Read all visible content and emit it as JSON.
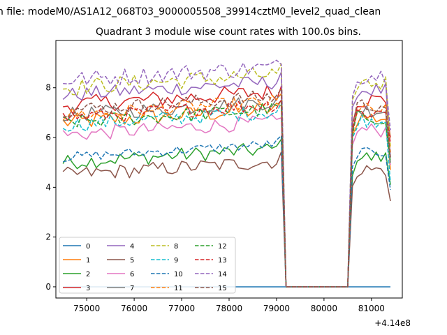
{
  "figure": {
    "suptitle": "n file: modeM0/AS1A12_068T03_9000005508_39914cztM0_level2_quad_clean"
  },
  "chart_data": {
    "type": "line",
    "title": "Quadrant 3 module wise count rates with 100.0s bins.",
    "xlabel": "",
    "ylabel": "",
    "x_offset_label": "+4.14e8",
    "xlim": [
      74350,
      81650
    ],
    "ylim": [
      -0.45,
      9.9
    ],
    "x_ticks": [
      75000,
      76000,
      77000,
      78000,
      79000,
      80000,
      81000
    ],
    "x_tick_labels": [
      "75000",
      "76000",
      "77000",
      "78000",
      "79000",
      "80000",
      "81000"
    ],
    "y_ticks": [
      0,
      2,
      4,
      6,
      8
    ],
    "y_tick_labels": [
      "0",
      "2",
      "4",
      "6",
      "8"
    ],
    "grid": false,
    "legend_position": "lower-left",
    "legend_columns": 4,
    "x_segments": [
      {
        "start": 74500,
        "end": 79100,
        "step": 100
      },
      {
        "start": 80600,
        "end": 81400,
        "step": 100
      }
    ],
    "gap": {
      "start": 79200,
      "end": 80500,
      "value": 0
    },
    "series": [
      {
        "name": "0",
        "color": "#1f77b4",
        "dash": "solid",
        "level": 0,
        "spread": 0,
        "end_value": 0
      },
      {
        "name": "1",
        "color": "#ff7f0e",
        "dash": "solid",
        "level": 6.6,
        "spread": 0.35,
        "end_value": 4.7
      },
      {
        "name": "2",
        "color": "#2ca02c",
        "dash": "solid",
        "level": 5.0,
        "spread": 0.3,
        "end_value": 4.1
      },
      {
        "name": "3",
        "color": "#d62728",
        "dash": "solid",
        "level": 7.3,
        "spread": 0.35,
        "end_value": 6.0
      },
      {
        "name": "4",
        "color": "#9467bd",
        "dash": "solid",
        "level": 7.7,
        "spread": 0.3,
        "end_value": 5.2
      },
      {
        "name": "5",
        "color": "#8c564b",
        "dash": "solid",
        "level": 4.5,
        "spread": 0.3,
        "end_value": 3.45
      },
      {
        "name": "6",
        "color": "#e377c2",
        "dash": "solid",
        "level": 6.1,
        "spread": 0.3,
        "end_value": 4.9
      },
      {
        "name": "7",
        "color": "#7f7f7f",
        "dash": "solid",
        "level": 6.9,
        "spread": 0.3,
        "end_value": 5.0
      },
      {
        "name": "8",
        "color": "#bcbd22",
        "dash": "dashed",
        "level": 8.0,
        "spread": 0.35,
        "end_value": 5.6
      },
      {
        "name": "9",
        "color": "#17becf",
        "dash": "dashed",
        "level": 6.5,
        "spread": 0.3,
        "end_value": 4.2
      },
      {
        "name": "10",
        "color": "#1f77b4",
        "dash": "dashed",
        "level": 5.2,
        "spread": 0.2,
        "end_value": 3.9
      },
      {
        "name": "11",
        "color": "#ff7f0e",
        "dash": "dashed",
        "level": 6.9,
        "spread": 0.3,
        "end_value": 5.4
      },
      {
        "name": "12",
        "color": "#2ca02c",
        "dash": "dashed",
        "level": 6.6,
        "spread": 0.3,
        "end_value": 5.0
      },
      {
        "name": "13",
        "color": "#d62728",
        "dash": "dashed",
        "level": 6.8,
        "spread": 0.3,
        "end_value": 5.8
      },
      {
        "name": "14",
        "color": "#9467bd",
        "dash": "dashed",
        "level": 8.3,
        "spread": 0.35,
        "end_value": 6.3
      },
      {
        "name": "15",
        "color": "#8c564b",
        "dash": "dashed",
        "level": 7.1,
        "spread": 0.3,
        "end_value": 5.2
      }
    ]
  }
}
